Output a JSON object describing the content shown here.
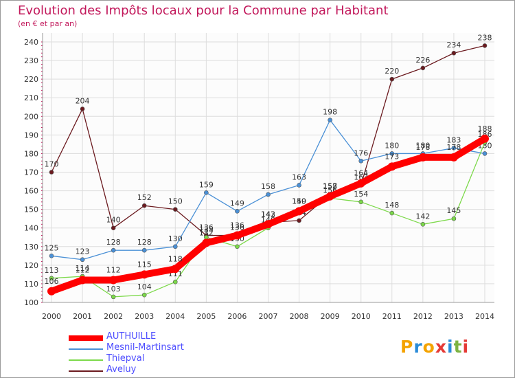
{
  "chart_data": {
    "type": "line",
    "title": "Evolution des Impôts locaux pour la Commune par Habitant",
    "subtitle": "(en € et par an)",
    "x": [
      "2000",
      "2001",
      "2002",
      "2003",
      "2004",
      "2005",
      "2006",
      "2007",
      "2008",
      "2009",
      "2010",
      "2011",
      "2012",
      "2013",
      "2014"
    ],
    "ylim": [
      100,
      240
    ],
    "yticks": [
      100,
      110,
      120,
      130,
      140,
      150,
      160,
      170,
      180,
      190,
      200,
      210,
      220,
      230,
      240
    ],
    "grid": true,
    "legend_position": "bottom-left",
    "series": [
      {
        "name": "Aveluy",
        "color": "#6b1a1f",
        "values": [
          170,
          204,
          140,
          152,
          150,
          136,
          136,
          143,
          144,
          158,
          163,
          220,
          226,
          234,
          238
        ]
      },
      {
        "name": "Mesnil-Martinsart",
        "color": "#4a90d6",
        "values": [
          125,
          123,
          128,
          128,
          130,
          159,
          149,
          158,
          163,
          198,
          176,
          180,
          180,
          183,
          180
        ]
      },
      {
        "name": "Thiepval",
        "color": "#7cd94a",
        "values": [
          113,
          114,
          103,
          104,
          111,
          135,
          130,
          140,
          150,
          156,
          154,
          148,
          142,
          145,
          186
        ]
      },
      {
        "name": "AUTHUILLE",
        "color": "#ff0000",
        "values": [
          106,
          112,
          112,
          115,
          118,
          132,
          136,
          142,
          149,
          157,
          164,
          173,
          178,
          178,
          188
        ]
      }
    ],
    "legend_order": [
      "AUTHUILLE",
      "Mesnil-Martinsart",
      "Thiepval",
      "Aveluy"
    ]
  },
  "logo": {
    "text": "Proxiti",
    "colors": [
      "#f4a300",
      "#2a8bd8",
      "#f4a300",
      "#e53935",
      "#2a8bd8",
      "#7cb342",
      "#e53935"
    ]
  }
}
